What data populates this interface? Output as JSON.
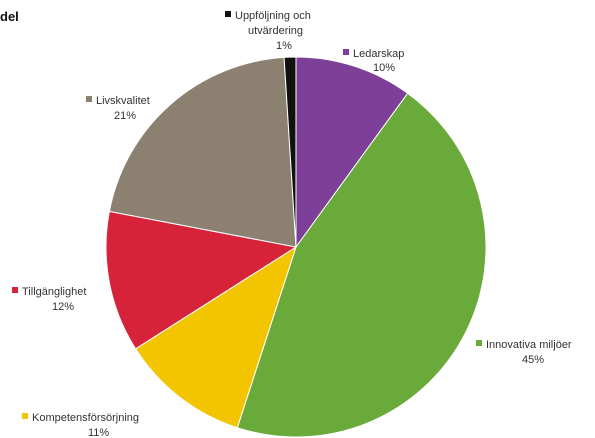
{
  "corner_text": "del",
  "chart_data": {
    "type": "pie",
    "slices": [
      {
        "label": "Ledarskap",
        "value": 10,
        "pct_label": "10%",
        "color": "#7e3f98"
      },
      {
        "label": "Innovativa miljöer",
        "value": 45,
        "pct_label": "45%",
        "color": "#6aaa3a"
      },
      {
        "label": "Kompetensförsörjning",
        "value": 11,
        "pct_label": "11%",
        "color": "#f2c500"
      },
      {
        "label": "Tillgänglighet",
        "value": 12,
        "pct_label": "12%",
        "color": "#d6233a"
      },
      {
        "label": "Livskvalitet",
        "value": 21,
        "pct_label": "21%",
        "color": "#8c8070"
      },
      {
        "label": "Uppföljning och utvärdering",
        "label_lines": [
          "Uppföljning och",
          "utvärdering"
        ],
        "value": 1,
        "pct_label": "1%",
        "color": "#111111"
      }
    ],
    "start_angle_deg": 0,
    "direction": "clockwise",
    "legend": "inline labels with colored square markers"
  }
}
